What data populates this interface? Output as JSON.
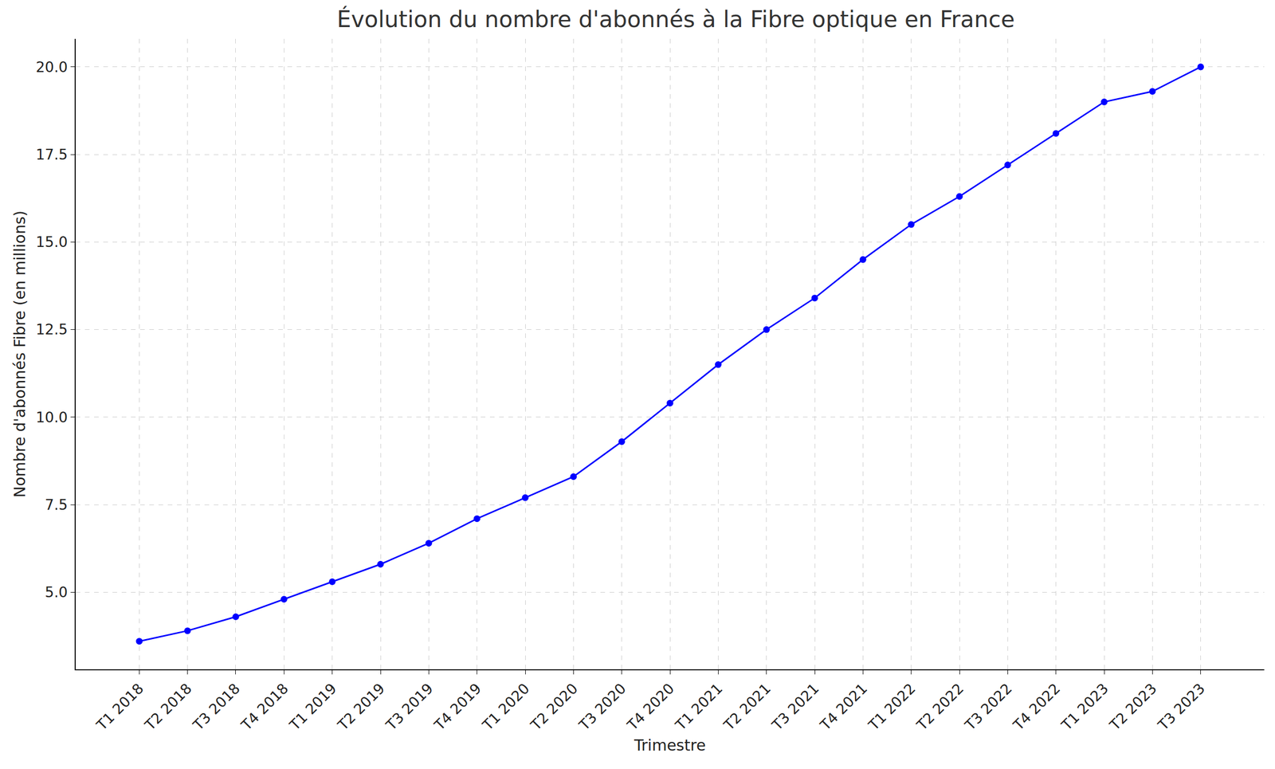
{
  "chart_data": {
    "type": "line",
    "title": "Évolution du nombre d'abonnés à la Fibre optique en France",
    "x_label": "Trimestre",
    "y_label": "Nombre d'abonnés Fibre (en millions)",
    "categories": [
      "T1 2018",
      "T2 2018",
      "T3 2018",
      "T4 2018",
      "T1 2019",
      "T2 2019",
      "T3 2019",
      "T4 2019",
      "T1 2020",
      "T2 2020",
      "T3 2020",
      "T4 2020",
      "T1 2021",
      "T2 2021",
      "T3 2021",
      "T4 2021",
      "T1 2022",
      "T2 2022",
      "T3 2022",
      "T4 2022",
      "T1 2023",
      "T2 2023",
      "T3 2023"
    ],
    "values": [
      3.6,
      3.9,
      4.3,
      4.8,
      5.3,
      5.8,
      6.4,
      7.1,
      7.7,
      8.3,
      9.3,
      10.4,
      11.5,
      12.5,
      13.4,
      14.5,
      15.5,
      16.3,
      17.2,
      18.1,
      19.0,
      19.3,
      20.0
    ],
    "color": "#0000ff",
    "marker": "circle",
    "line_style": "solid",
    "ylim": [
      2.8,
      20.8
    ],
    "yticks": [
      {
        "value": 5,
        "label": "5.0"
      },
      {
        "value": 7.5,
        "label": "7.5"
      },
      {
        "value": 10,
        "label": "10.0"
      },
      {
        "value": 12.5,
        "label": "12.5"
      },
      {
        "value": 15,
        "label": "15.0"
      },
      {
        "value": 17.5,
        "label": "17.5"
      },
      {
        "value": 20,
        "label": "20.0"
      }
    ],
    "grid": true
  }
}
